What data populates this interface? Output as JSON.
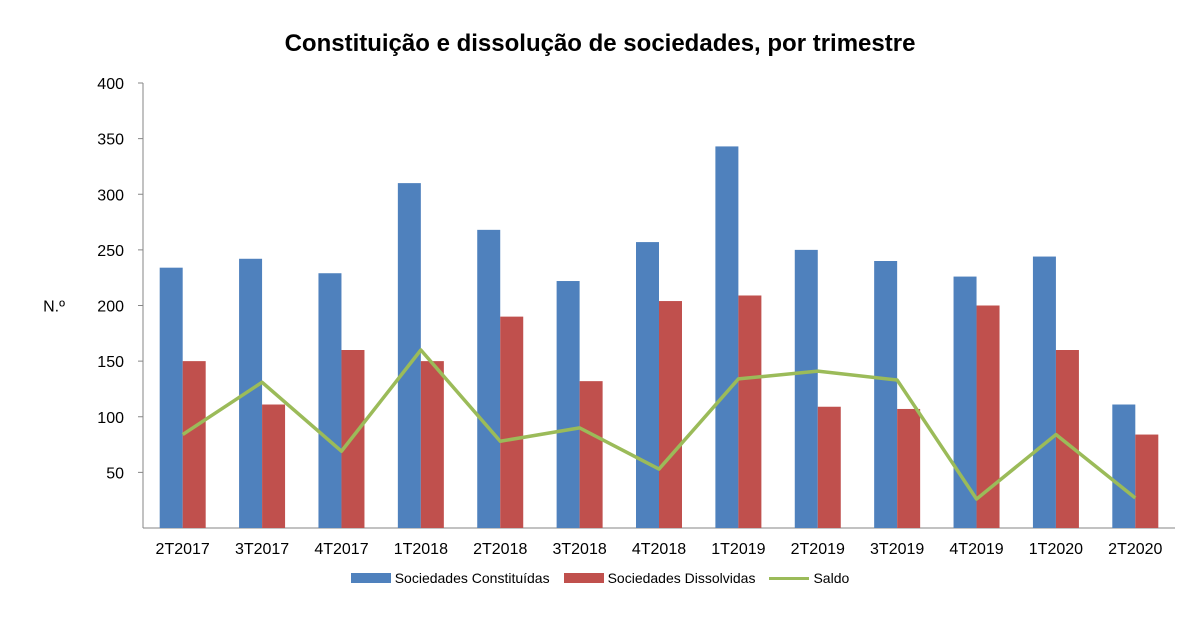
{
  "chart_data": {
    "type": "bar",
    "title": "Constituição e dissolução de sociedades, por trimestre",
    "ylabel": "N.º",
    "xlabel": "",
    "ylim": [
      0,
      400
    ],
    "yticks": [
      50,
      100,
      150,
      200,
      250,
      300,
      350,
      400
    ],
    "grid": false,
    "legend_position": "bottom",
    "categories": [
      "2T2017",
      "3T2017",
      "4T2017",
      "1T2018",
      "2T2018",
      "3T2018",
      "4T2018",
      "1T2019",
      "2T2019",
      "3T2019",
      "4T2019",
      "1T2020",
      "2T2020"
    ],
    "series": [
      {
        "name": "Sociedades Constituídas",
        "kind": "bar",
        "color": "#4F81BD",
        "values": [
          234,
          242,
          229,
          310,
          268,
          222,
          257,
          343,
          250,
          240,
          226,
          244,
          111
        ]
      },
      {
        "name": "Sociedades Dissolvidas",
        "kind": "bar",
        "color": "#C0504D",
        "values": [
          150,
          111,
          160,
          150,
          190,
          132,
          204,
          209,
          109,
          107,
          200,
          160,
          84
        ]
      },
      {
        "name": "Saldo",
        "kind": "line",
        "color": "#9BBB59",
        "values": [
          84,
          131,
          69,
          160,
          78,
          90,
          53,
          134,
          141,
          133,
          26,
          84,
          27
        ]
      }
    ]
  }
}
